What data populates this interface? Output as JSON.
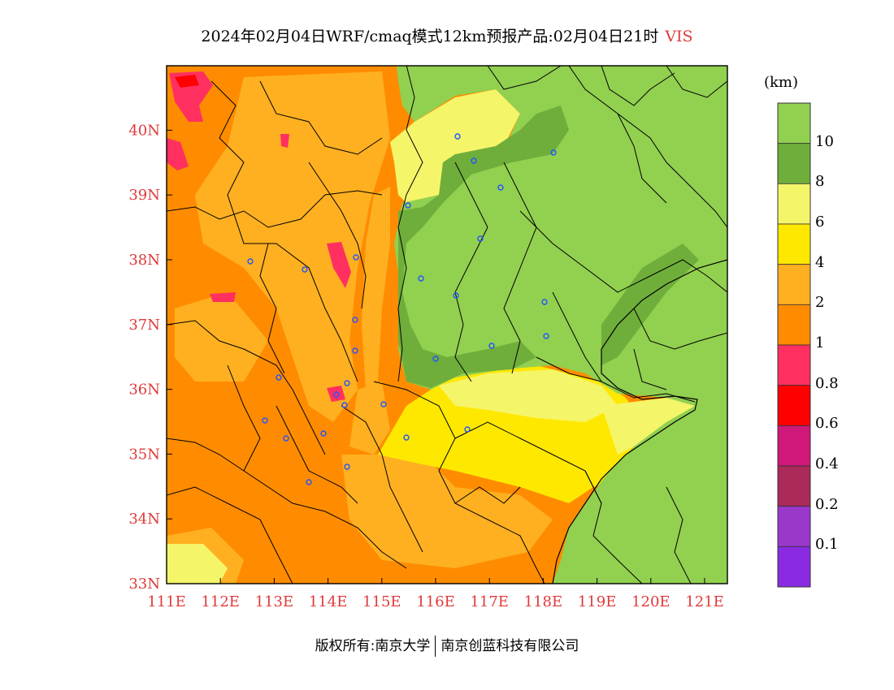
{
  "header": {
    "title": "2024年02月04日WRF/cmaq模式12km预报产品:02月04日21时",
    "variable": "VIS"
  },
  "legend": {
    "unit": "(km)",
    "labels": [
      "10",
      "8",
      "6",
      "4",
      "2",
      "1",
      "0.8",
      "0.6",
      "0.4",
      "0.2",
      "0.1"
    ],
    "colors": [
      "#92d050",
      "#6fae3a",
      "#f5f56a",
      "#ffe800",
      "#ffb020",
      "#ff8c00",
      "#ff3060",
      "#ff0000",
      "#d0187a",
      "#aa2a5a",
      "#9a38cc",
      "#8a2be2"
    ]
  },
  "axes": {
    "x_ticks": [
      "111E",
      "112E",
      "113E",
      "114E",
      "115E",
      "116E",
      "117E",
      "118E",
      "119E",
      "120E",
      "121E"
    ],
    "y_ticks": [
      "33N",
      "34N",
      "35N",
      "36N",
      "37N",
      "38N",
      "39N",
      "40N"
    ]
  },
  "footer": {
    "left": "版权所有:南京大学",
    "right": "南京创蓝科技有限公司"
  }
}
